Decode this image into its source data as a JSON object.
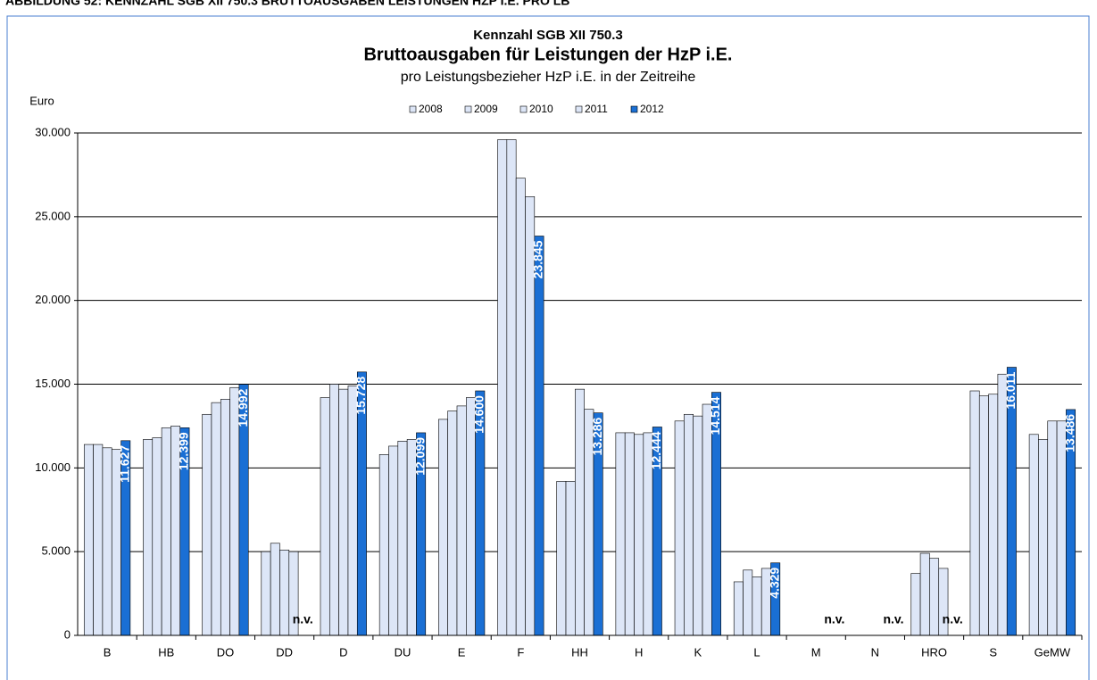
{
  "chart_data": {
    "type": "bar",
    "figure_caption": "ABBILDUNG 52: KENNZAHL SGB XII 750.3 BRUTTOAUSGABEN LEISTUNGEN HZP I.E. PRO LB",
    "supertitle": "Kennzahl SGB XII 750.3",
    "title": "Bruttoausgaben für Leistungen der HzP i.E.",
    "subtitle": "pro Leistungsbezieher HzP i.E. in der Zeitreihe",
    "y_label": "Euro",
    "categories": [
      "B",
      "HB",
      "DO",
      "DD",
      "D",
      "DU",
      "E",
      "F",
      "HH",
      "H",
      "K",
      "L",
      "M",
      "N",
      "HRO",
      "S",
      "GeMW"
    ],
    "series": [
      {
        "name": "2008",
        "color": "#dde6f7",
        "values": [
          11400,
          11700,
          13200,
          5000,
          14200,
          10800,
          12900,
          29600,
          9200,
          12100,
          12800,
          3200,
          null,
          null,
          3700,
          14600,
          12000
        ]
      },
      {
        "name": "2009",
        "color": "#dde6f7",
        "values": [
          11400,
          11800,
          13900,
          5500,
          15000,
          11300,
          13400,
          29600,
          9200,
          12100,
          13200,
          3900,
          null,
          null,
          4900,
          14300,
          11700
        ]
      },
      {
        "name": "2010",
        "color": "#dde6f7",
        "values": [
          11200,
          12400,
          14100,
          5100,
          14700,
          11600,
          13700,
          27300,
          14700,
          12000,
          13100,
          3500,
          null,
          null,
          4600,
          14400,
          12800
        ]
      },
      {
        "name": "2011",
        "color": "#dde6f7",
        "values": [
          11100,
          12500,
          14800,
          5000,
          14900,
          11700,
          14200,
          26200,
          13500,
          12100,
          13800,
          4000,
          null,
          null,
          4000,
          15600,
          12800
        ]
      },
      {
        "name": "2012",
        "color": "#1a6fd4",
        "values": [
          11627,
          12399,
          14992,
          null,
          15728,
          12099,
          14600,
          23845,
          13286,
          12444,
          14514,
          4329,
          null,
          null,
          null,
          16011,
          13486
        ],
        "value_labels": [
          "11.627",
          "12.399",
          "14.992",
          "n.v.",
          "15.728",
          "12.099",
          "14.600",
          "23.845",
          "13.286",
          "12.444",
          "14.514",
          "4.329",
          "n.v.",
          "n.v.",
          "n.v.",
          "16.011",
          "13.486"
        ]
      }
    ],
    "ylim": [
      0,
      30000
    ],
    "yticks": [
      0,
      {
        "value": 5000,
        "label": "5.000"
      },
      {
        "value": 10000,
        "label": "10.000"
      },
      {
        "value": 15000,
        "label": "15.000"
      },
      {
        "value": 20000,
        "label": "20.000"
      },
      {
        "value": 25000,
        "label": "25.000"
      },
      {
        "value": 30000,
        "label": "30.000"
      }
    ],
    "grid": true,
    "legend": "top"
  }
}
